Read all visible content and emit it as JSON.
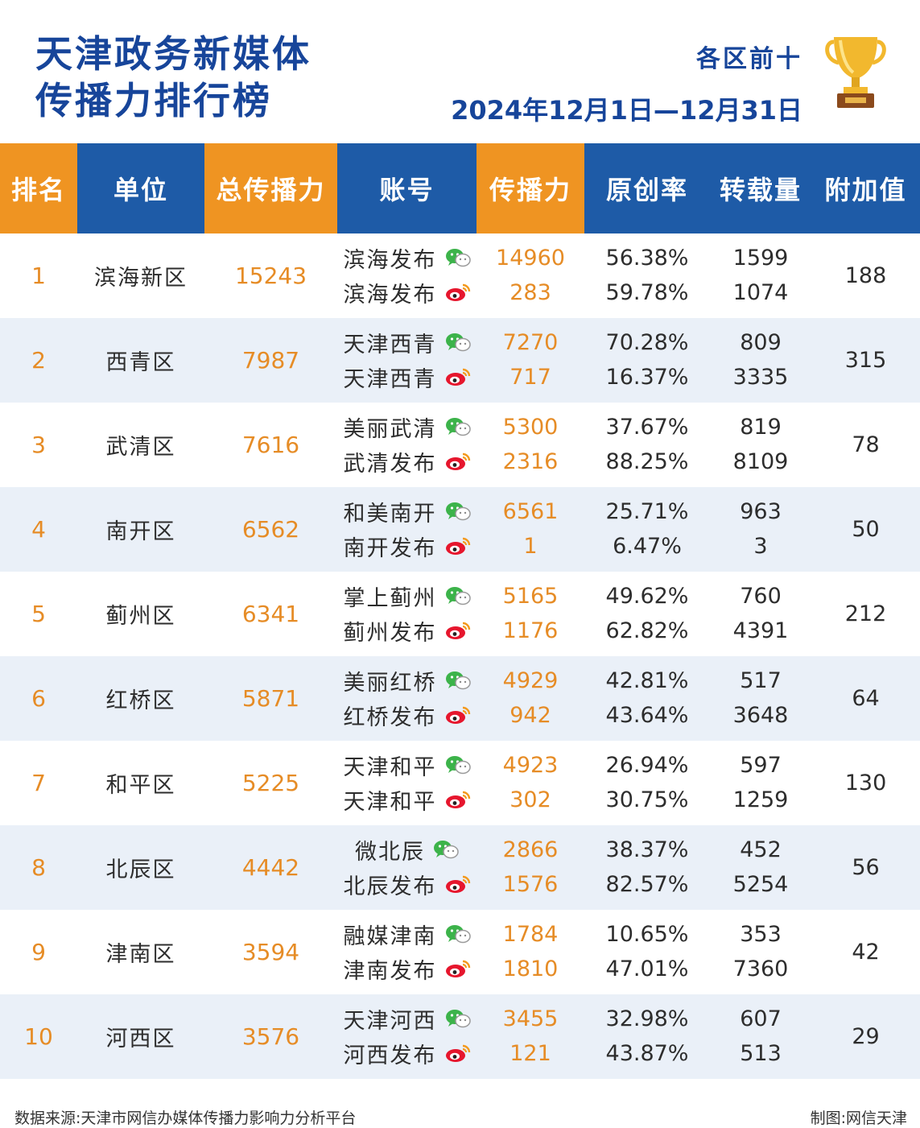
{
  "header": {
    "title_line1": "天津政务新媒体",
    "title_line2": "传播力排行榜",
    "subtitle": "各区前十",
    "date_range": "2024年12月1日—12月31日"
  },
  "colors": {
    "brand_blue": "#1e5ba7",
    "title_blue": "#17459a",
    "accent_orange": "#ef9422",
    "value_orange": "#e68c26",
    "row_alt": "#eaf0f8",
    "wechat_green": "#3cb34a",
    "weibo_red": "#e6162d"
  },
  "icons": {
    "trophy": "trophy-icon",
    "wechat": "wechat-icon",
    "weibo": "weibo-icon"
  },
  "table": {
    "columns": [
      "排名",
      "单位",
      "总传播力",
      "账号",
      "传播力",
      "原创率",
      "转载量",
      "附加值"
    ],
    "rows": [
      {
        "rank": "1",
        "unit": "滨海新区",
        "total": "15243",
        "bonus": "188",
        "accounts": [
          {
            "name": "滨海发布",
            "platform": "wechat",
            "power": "14960",
            "orig": "56.38%",
            "repost": "1599"
          },
          {
            "name": "滨海发布",
            "platform": "weibo",
            "power": "283",
            "orig": "59.78%",
            "repost": "1074"
          }
        ]
      },
      {
        "rank": "2",
        "unit": "西青区",
        "total": "7987",
        "bonus": "315",
        "accounts": [
          {
            "name": "天津西青",
            "platform": "wechat",
            "power": "7270",
            "orig": "70.28%",
            "repost": "809"
          },
          {
            "name": "天津西青",
            "platform": "weibo",
            "power": "717",
            "orig": "16.37%",
            "repost": "3335"
          }
        ]
      },
      {
        "rank": "3",
        "unit": "武清区",
        "total": "7616",
        "bonus": "78",
        "accounts": [
          {
            "name": "美丽武清",
            "platform": "wechat",
            "power": "5300",
            "orig": "37.67%",
            "repost": "819"
          },
          {
            "name": "武清发布",
            "platform": "weibo",
            "power": "2316",
            "orig": "88.25%",
            "repost": "8109"
          }
        ]
      },
      {
        "rank": "4",
        "unit": "南开区",
        "total": "6562",
        "bonus": "50",
        "accounts": [
          {
            "name": "和美南开",
            "platform": "wechat",
            "power": "6561",
            "orig": "25.71%",
            "repost": "963"
          },
          {
            "name": "南开发布",
            "platform": "weibo",
            "power": "1",
            "orig": "6.47%",
            "repost": "3"
          }
        ]
      },
      {
        "rank": "5",
        "unit": "蓟州区",
        "total": "6341",
        "bonus": "212",
        "accounts": [
          {
            "name": "掌上蓟州",
            "platform": "wechat",
            "power": "5165",
            "orig": "49.62%",
            "repost": "760"
          },
          {
            "name": "蓟州发布",
            "platform": "weibo",
            "power": "1176",
            "orig": "62.82%",
            "repost": "4391"
          }
        ]
      },
      {
        "rank": "6",
        "unit": "红桥区",
        "total": "5871",
        "bonus": "64",
        "accounts": [
          {
            "name": "美丽红桥",
            "platform": "wechat",
            "power": "4929",
            "orig": "42.81%",
            "repost": "517"
          },
          {
            "name": "红桥发布",
            "platform": "weibo",
            "power": "942",
            "orig": "43.64%",
            "repost": "3648"
          }
        ]
      },
      {
        "rank": "7",
        "unit": "和平区",
        "total": "5225",
        "bonus": "130",
        "accounts": [
          {
            "name": "天津和平",
            "platform": "wechat",
            "power": "4923",
            "orig": "26.94%",
            "repost": "597"
          },
          {
            "name": "天津和平",
            "platform": "weibo",
            "power": "302",
            "orig": "30.75%",
            "repost": "1259"
          }
        ]
      },
      {
        "rank": "8",
        "unit": "北辰区",
        "total": "4442",
        "bonus": "56",
        "accounts": [
          {
            "name": "微北辰",
            "platform": "wechat",
            "power": "2866",
            "orig": "38.37%",
            "repost": "452"
          },
          {
            "name": "北辰发布",
            "platform": "weibo",
            "power": "1576",
            "orig": "82.57%",
            "repost": "5254"
          }
        ]
      },
      {
        "rank": "9",
        "unit": "津南区",
        "total": "3594",
        "bonus": "42",
        "accounts": [
          {
            "name": "融媒津南",
            "platform": "wechat",
            "power": "1784",
            "orig": "10.65%",
            "repost": "353"
          },
          {
            "name": "津南发布",
            "platform": "weibo",
            "power": "1810",
            "orig": "47.01%",
            "repost": "7360"
          }
        ]
      },
      {
        "rank": "10",
        "unit": "河西区",
        "total": "3576",
        "bonus": "29",
        "accounts": [
          {
            "name": "天津河西",
            "platform": "wechat",
            "power": "3455",
            "orig": "32.98%",
            "repost": "607"
          },
          {
            "name": "河西发布",
            "platform": "weibo",
            "power": "121",
            "orig": "43.87%",
            "repost": "513"
          }
        ]
      }
    ]
  },
  "footer": {
    "source": "数据来源:天津市网信办媒体传播力影响力分析平台",
    "credit": "制图:网信天津"
  }
}
